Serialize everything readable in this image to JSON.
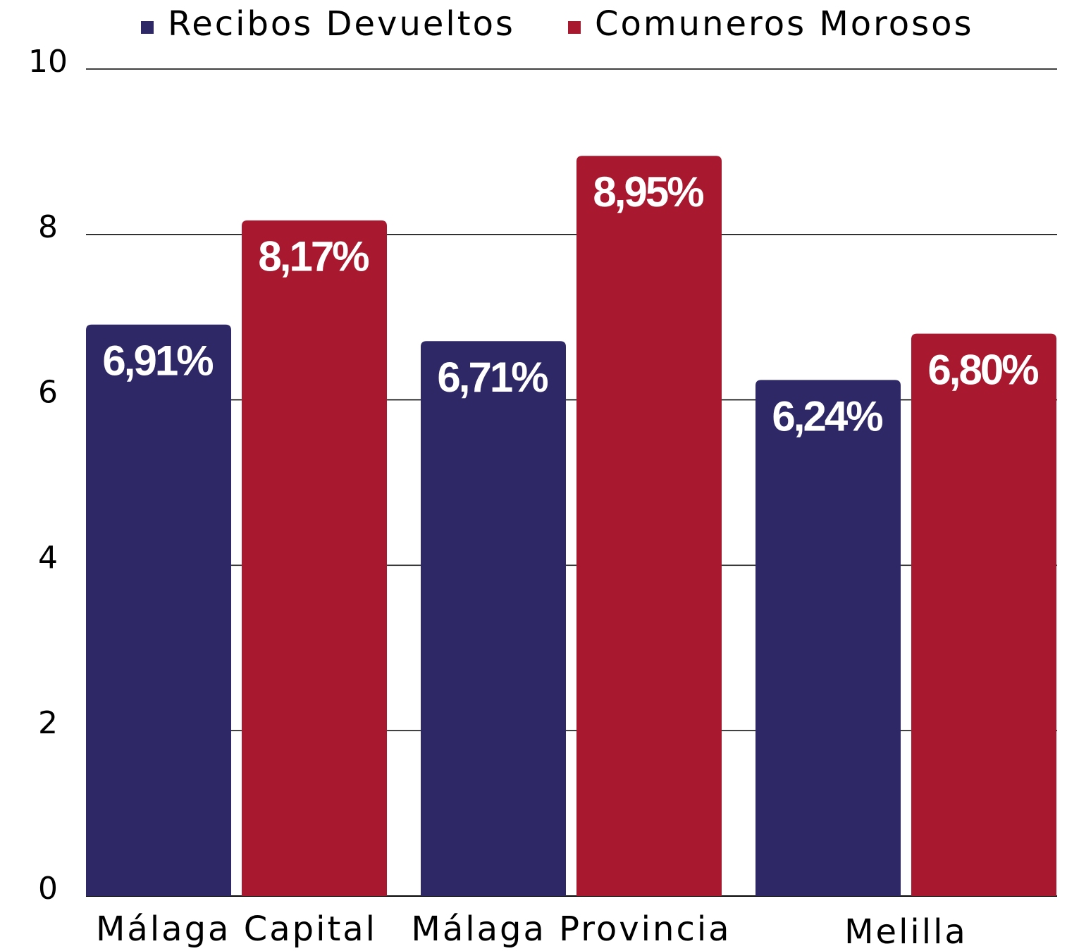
{
  "chart_data": {
    "type": "bar",
    "categories": [
      "Málaga Capital",
      "Málaga Provincia",
      "Melilla"
    ],
    "series": [
      {
        "name": "Recibos Devueltos",
        "color": "#2f2866",
        "values": [
          6.91,
          6.71,
          6.24
        ],
        "value_labels": [
          "6,91%",
          "6,71%",
          "6,24%"
        ]
      },
      {
        "name": "Comuneros Morosos",
        "color": "#a8182e",
        "values": [
          8.17,
          8.95,
          6.8
        ],
        "value_labels": [
          "8,17%",
          "8,95%",
          "6,80%"
        ]
      }
    ],
    "ylim": [
      0,
      10
    ],
    "yticks": [
      0,
      2,
      4,
      6,
      8,
      10
    ],
    "grid": true,
    "legend": "top"
  }
}
